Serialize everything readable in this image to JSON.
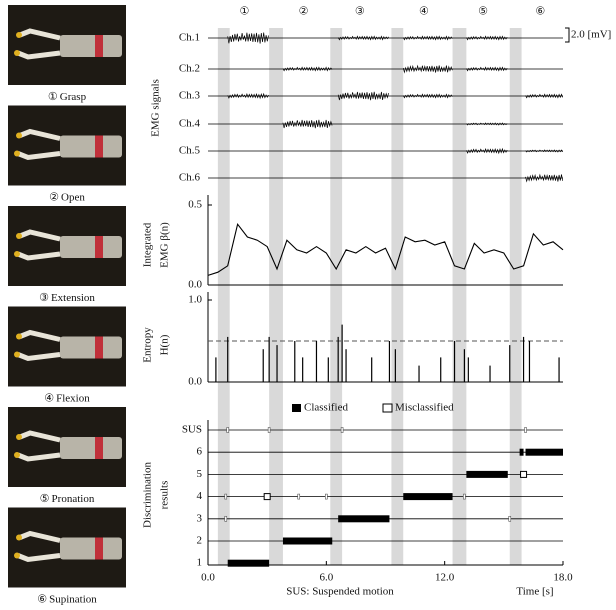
{
  "motions": [
    {
      "symbol": "①",
      "name": "Grasp"
    },
    {
      "symbol": "②",
      "name": "Open"
    },
    {
      "symbol": "③",
      "name": "Extension"
    },
    {
      "symbol": "④",
      "name": "Flexion"
    },
    {
      "symbol": "⑤",
      "name": "Pronation"
    },
    {
      "symbol": "⑥",
      "name": "Supination"
    }
  ],
  "suspend_bands": [
    [
      0.5,
      1.1
    ],
    [
      3.1,
      3.8
    ],
    [
      6.2,
      6.8
    ],
    [
      9.3,
      9.9
    ],
    [
      12.4,
      13.1
    ],
    [
      15.3,
      15.9
    ]
  ],
  "emg": {
    "label": "EMG signals",
    "scale": "2.0 [mV]",
    "scale_value": 2.0,
    "channels": [
      {
        "name": "Ch.1",
        "bursts": [
          [
            1.0,
            3.1,
            1.6
          ],
          [
            6.6,
            9.2,
            0.5
          ],
          [
            9.9,
            12.4,
            0.5
          ],
          [
            13.1,
            15.2,
            0.5
          ]
        ]
      },
      {
        "name": "Ch.2",
        "bursts": [
          [
            3.8,
            6.3,
            0.5
          ],
          [
            9.9,
            12.4,
            1.0
          ],
          [
            13.1,
            15.2,
            0.5
          ]
        ]
      },
      {
        "name": "Ch.3",
        "bursts": [
          [
            1.0,
            3.1,
            0.6
          ],
          [
            6.6,
            9.2,
            1.2
          ],
          [
            9.9,
            12.4,
            0.5
          ],
          [
            16.1,
            18.0,
            0.5
          ]
        ]
      },
      {
        "name": "Ch.4",
        "bursts": [
          [
            3.8,
            6.3,
            1.2
          ],
          [
            13.1,
            15.2,
            0.3
          ]
        ]
      },
      {
        "name": "Ch.5",
        "bursts": [
          [
            13.1,
            15.2,
            0.6
          ],
          [
            16.1,
            18.0,
            0.3
          ]
        ]
      },
      {
        "name": "Ch.6",
        "bursts": [
          [
            16.1,
            18.0,
            1.0
          ]
        ]
      }
    ]
  },
  "integrated": {
    "label": [
      "Integrated",
      "EMG β(n)"
    ],
    "ylim": [
      0,
      0.5
    ],
    "yticks": [
      {
        "value": 0,
        "label": "0.0"
      },
      0.5
    ],
    "t": [
      0,
      0.5,
      1,
      1.5,
      2,
      2.5,
      3,
      3.5,
      4,
      4.5,
      5,
      5.5,
      6,
      6.5,
      7,
      7.5,
      8,
      8.5,
      9,
      9.5,
      10,
      10.5,
      11,
      11.5,
      12,
      12.5,
      13,
      13.5,
      14,
      14.5,
      15,
      15.5,
      16,
      16.5,
      17,
      17.5,
      18
    ],
    "values": [
      0.06,
      0.08,
      0.12,
      0.38,
      0.3,
      0.28,
      0.24,
      0.1,
      0.28,
      0.22,
      0.2,
      0.24,
      0.2,
      0.1,
      0.22,
      0.2,
      0.24,
      0.2,
      0.23,
      0.1,
      0.3,
      0.27,
      0.28,
      0.25,
      0.27,
      0.12,
      0.1,
      0.26,
      0.2,
      0.22,
      0.2,
      0.1,
      0.12,
      0.32,
      0.25,
      0.27,
      0.22
    ]
  },
  "entropy": {
    "label": [
      "Entropy",
      "H(n)"
    ],
    "ylim": [
      0,
      1
    ],
    "yticks": [
      {
        "value": 0,
        "label": "0.0"
      },
      {
        "value": 1,
        "label": "1.0"
      }
    ],
    "threshold": 0.5,
    "spikes": [
      [
        0.4,
        0.3
      ],
      [
        1.0,
        0.55
      ],
      [
        2.8,
        0.4
      ],
      [
        3.1,
        0.55
      ],
      [
        3.5,
        0.45
      ],
      [
        4.4,
        0.5
      ],
      [
        4.8,
        0.3
      ],
      [
        5.5,
        0.5
      ],
      [
        6.1,
        0.3
      ],
      [
        6.6,
        0.55
      ],
      [
        6.8,
        0.7
      ],
      [
        7.0,
        0.4
      ],
      [
        8.3,
        0.3
      ],
      [
        9.2,
        0.5
      ],
      [
        9.5,
        0.4
      ],
      [
        10.7,
        0.2
      ],
      [
        11.8,
        0.3
      ],
      [
        12.5,
        0.5
      ],
      [
        13.0,
        0.4
      ],
      [
        13.2,
        0.3
      ],
      [
        14.3,
        0.2
      ],
      [
        15.3,
        0.45
      ],
      [
        16.0,
        0.55
      ],
      [
        16.3,
        0.5
      ],
      [
        17.8,
        0.3
      ]
    ]
  },
  "legend": [
    "Classified",
    "Misclassified"
  ],
  "discrimination": {
    "label": [
      "Discrimination",
      "results"
    ],
    "rows": [
      "SUS",
      "6",
      "5",
      "4",
      "3",
      "2",
      "1"
    ],
    "xlim": [
      0,
      18
    ],
    "xticks": [
      {
        "value": 0,
        "label": "0.0"
      },
      {
        "value": 6,
        "label": "6.0"
      },
      {
        "value": 12,
        "label": "12.0"
      },
      {
        "value": 18,
        "label": "18.0"
      }
    ],
    "classified": [
      {
        "row": "1",
        "start": 1.0,
        "end": 3.1
      },
      {
        "row": "2",
        "start": 3.8,
        "end": 6.3
      },
      {
        "row": "3",
        "start": 6.6,
        "end": 9.2
      },
      {
        "row": "4",
        "start": 9.9,
        "end": 12.4
      },
      {
        "row": "5",
        "start": 13.1,
        "end": 15.2
      },
      {
        "row": "6",
        "start": 15.8,
        "end": 16.0
      },
      {
        "row": "6",
        "start": 16.1,
        "end": 18.0
      }
    ],
    "misclassified": [
      {
        "row": "4",
        "t": 3.0
      },
      {
        "row": "5",
        "t": 16.0
      }
    ],
    "transition_marks": [
      {
        "row": "SUS",
        "t": 1.0
      },
      {
        "row": "SUS",
        "t": 3.1
      },
      {
        "row": "SUS",
        "t": 6.8
      },
      {
        "row": "SUS",
        "t": 16.1
      },
      {
        "row": "4",
        "t": 0.9
      },
      {
        "row": "4",
        "t": 4.6
      },
      {
        "row": "4",
        "t": 6.0
      },
      {
        "row": "4",
        "t": 13.0
      },
      {
        "row": "3",
        "t": 0.9
      },
      {
        "row": "3",
        "t": 15.3
      }
    ]
  },
  "footnote": "SUS: Suspended motion",
  "xlabel": "Time [s]"
}
